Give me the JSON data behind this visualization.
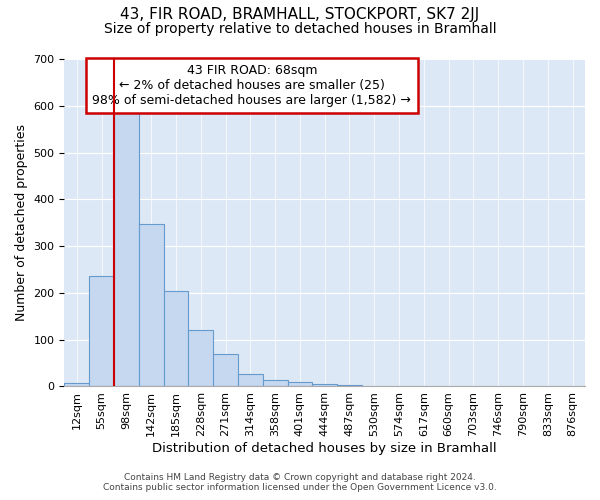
{
  "title": "43, FIR ROAD, BRAMHALL, STOCKPORT, SK7 2JJ",
  "subtitle": "Size of property relative to detached houses in Bramhall",
  "xlabel": "Distribution of detached houses by size in Bramhall",
  "ylabel": "Number of detached properties",
  "footer_line1": "Contains HM Land Registry data © Crown copyright and database right 2024.",
  "footer_line2": "Contains public sector information licensed under the Open Government Licence v3.0.",
  "annotation_line1": "43 FIR ROAD: 68sqm",
  "annotation_line2": "← 2% of detached houses are smaller (25)",
  "annotation_line3": "98% of semi-detached houses are larger (1,582) →",
  "bar_labels": [
    "12sqm",
    "55sqm",
    "98sqm",
    "142sqm",
    "185sqm",
    "228sqm",
    "271sqm",
    "314sqm",
    "358sqm",
    "401sqm",
    "444sqm",
    "487sqm",
    "530sqm",
    "574sqm",
    "617sqm",
    "660sqm",
    "703sqm",
    "746sqm",
    "790sqm",
    "833sqm",
    "876sqm"
  ],
  "bar_values": [
    8,
    237,
    587,
    347,
    203,
    120,
    70,
    27,
    13,
    10,
    5,
    3,
    2,
    1,
    1,
    1,
    0,
    0,
    0,
    0,
    0
  ],
  "bar_color": "#c5d8f0",
  "bar_edge_color": "#6699cc",
  "red_line_x": 1.5,
  "ylim": [
    0,
    700
  ],
  "yticks": [
    0,
    100,
    200,
    300,
    400,
    500,
    600,
    700
  ],
  "fig_bg_color": "#ffffff",
  "plot_bg_color": "#dce8f5",
  "annotation_box_color": "#ffffff",
  "annotation_box_edge": "#cc0000",
  "red_line_color": "#cc0000",
  "title_fontsize": 11,
  "subtitle_fontsize": 10,
  "tick_fontsize": 8,
  "annotation_fontsize": 9,
  "xlabel_fontsize": 9.5,
  "ylabel_fontsize": 9
}
